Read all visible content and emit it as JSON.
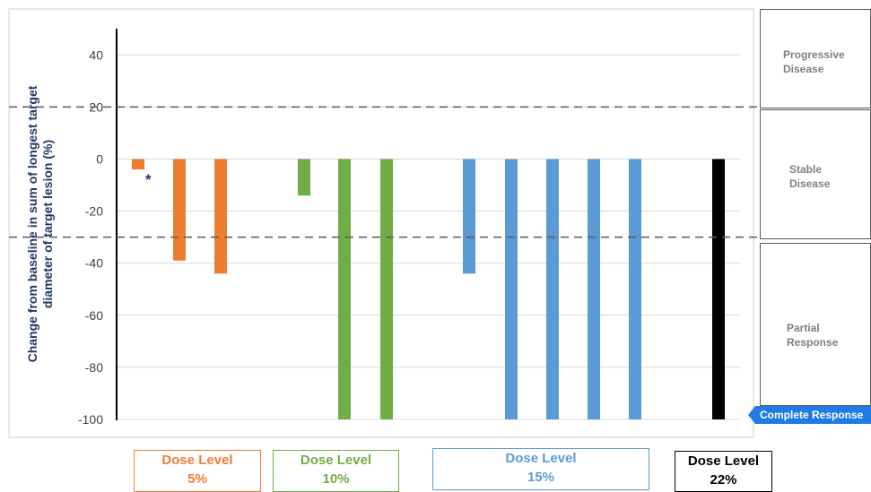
{
  "chart_data": {
    "type": "bar",
    "ylabel": "Change from baseline in sum of longest target\ndiameter of target lesion (%)",
    "ylim": [
      -100,
      50
    ],
    "yticks": [
      40,
      20,
      0,
      -20,
      -40,
      -60,
      -80,
      -100
    ],
    "thresholds": [
      20,
      -30
    ],
    "grid": true,
    "series": [
      {
        "name": "Dose Level 5%",
        "color": "#ed7d31",
        "values": [
          -4,
          -39,
          -44
        ]
      },
      {
        "name": "Dose Level 10%",
        "color": "#70ad47",
        "values": [
          -14,
          -100,
          -100
        ]
      },
      {
        "name": "Dose Level 15%",
        "color": "#5b9bd5",
        "values": [
          -44,
          -100,
          -100,
          -100,
          -100
        ]
      },
      {
        "name": "Dose Level 22%",
        "color": "#000000",
        "values": [
          -100
        ]
      }
    ],
    "annotations": [
      {
        "text": "*",
        "series": 0,
        "index": 0
      }
    ]
  },
  "zones": [
    {
      "label": "Progressive\nDisease"
    },
    {
      "label": "Stable\nDisease"
    },
    {
      "label": "Partial\nResponse"
    }
  ],
  "complete_response_label": "Complete Response",
  "dose_levels": [
    {
      "line1": "Dose Level",
      "line2": "5%",
      "color": "#ed7d31"
    },
    {
      "line1": "Dose Level",
      "line2": "10%",
      "color": "#70ad47"
    },
    {
      "line1": "Dose Level",
      "line2": "15%",
      "color": "#5b9bd5"
    },
    {
      "line1": "Dose Level",
      "line2": "22%",
      "color": "#000000"
    }
  ]
}
